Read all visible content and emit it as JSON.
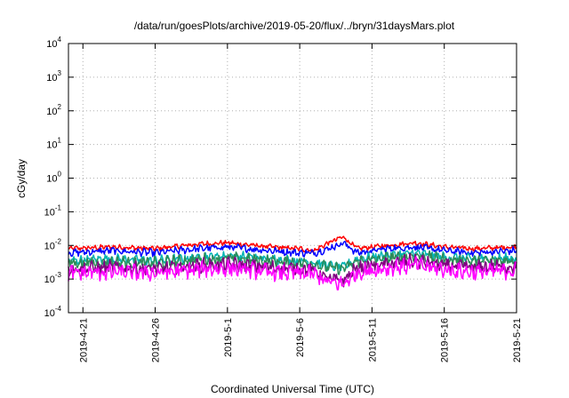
{
  "chart_data": {
    "type": "line",
    "title": "/data/run/goesPlots/archive/2019-05-20/flux/../bryn/31daysMars.plot",
    "xlabel": "Coordinated Universal Time (UTC)",
    "ylabel": "cGy/day",
    "y_scale": "log",
    "ylim": [
      0.0001,
      10000
    ],
    "xlim": [
      "2019-04-20",
      "2019-05-21"
    ],
    "grid": true,
    "y_ticks": [
      {
        "base": "10",
        "exp": "4"
      },
      {
        "base": "10",
        "exp": "3"
      },
      {
        "base": "10",
        "exp": "2"
      },
      {
        "base": "10",
        "exp": "1"
      },
      {
        "base": "10",
        "exp": "0"
      },
      {
        "base": "10",
        "exp": "-1"
      },
      {
        "base": "10",
        "exp": "-2"
      },
      {
        "base": "10",
        "exp": "-3"
      },
      {
        "base": "10",
        "exp": "-4"
      }
    ],
    "x_ticks": [
      "2019-4-21",
      "2019-4-26",
      "2019-5-1",
      "2019-5-6",
      "2019-5-11",
      "2019-5-16",
      "2019-5-21"
    ],
    "series": [
      {
        "color": "#ff0000",
        "x": [
          "2019-04-20",
          "2019-04-23",
          "2019-04-26",
          "2019-04-29",
          "2019-05-01",
          "2019-05-04",
          "2019-05-06",
          "2019-05-07",
          "2019-05-08",
          "2019-05-09",
          "2019-05-10",
          "2019-05-12",
          "2019-05-14",
          "2019-05-16",
          "2019-05-18",
          "2019-05-21"
        ],
        "y": [
          0.008,
          0.009,
          0.008,
          0.011,
          0.012,
          0.009,
          0.008,
          0.007,
          0.012,
          0.018,
          0.008,
          0.01,
          0.012,
          0.009,
          0.008,
          0.009
        ]
      },
      {
        "color": "#0000ff",
        "x": [
          "2019-04-20",
          "2019-04-23",
          "2019-04-26",
          "2019-04-29",
          "2019-05-01",
          "2019-05-04",
          "2019-05-06",
          "2019-05-07",
          "2019-05-08",
          "2019-05-09",
          "2019-05-10",
          "2019-05-12",
          "2019-05-14",
          "2019-05-16",
          "2019-05-18",
          "2019-05-21"
        ],
        "y": [
          0.006,
          0.007,
          0.006,
          0.008,
          0.009,
          0.007,
          0.006,
          0.006,
          0.008,
          0.012,
          0.006,
          0.008,
          0.009,
          0.007,
          0.006,
          0.007
        ]
      },
      {
        "color": "#00b3b3",
        "x": [
          "2019-04-20",
          "2019-04-23",
          "2019-04-26",
          "2019-04-29",
          "2019-05-01",
          "2019-05-04",
          "2019-05-06",
          "2019-05-07",
          "2019-05-08",
          "2019-05-09",
          "2019-05-10",
          "2019-05-12",
          "2019-05-14",
          "2019-05-16",
          "2019-05-18",
          "2019-05-21"
        ],
        "y": [
          0.0035,
          0.004,
          0.0035,
          0.0045,
          0.005,
          0.004,
          0.0035,
          0.0032,
          0.0025,
          0.0022,
          0.004,
          0.005,
          0.006,
          0.0045,
          0.004,
          0.0042
        ]
      },
      {
        "color": "#2e8b57",
        "x": [
          "2019-04-20",
          "2019-04-23",
          "2019-04-26",
          "2019-04-29",
          "2019-05-01",
          "2019-05-04",
          "2019-05-06",
          "2019-05-07",
          "2019-05-08",
          "2019-05-09",
          "2019-05-10",
          "2019-05-12",
          "2019-05-14",
          "2019-05-16",
          "2019-05-18",
          "2019-05-21"
        ],
        "y": [
          0.003,
          0.0032,
          0.003,
          0.0038,
          0.0042,
          0.0034,
          0.003,
          0.0028,
          0.0022,
          0.002,
          0.0034,
          0.0042,
          0.005,
          0.0038,
          0.0034,
          0.0036
        ]
      },
      {
        "color": "#800080",
        "x": [
          "2019-04-20",
          "2019-04-23",
          "2019-04-26",
          "2019-04-29",
          "2019-05-01",
          "2019-05-04",
          "2019-05-06",
          "2019-05-07",
          "2019-05-08",
          "2019-05-09",
          "2019-05-10",
          "2019-05-12",
          "2019-05-14",
          "2019-05-16",
          "2019-05-18",
          "2019-05-21"
        ],
        "y": [
          0.002,
          0.0022,
          0.002,
          0.0025,
          0.0028,
          0.0022,
          0.002,
          0.0018,
          0.001,
          0.0009,
          0.0022,
          0.0028,
          0.0035,
          0.0025,
          0.0022,
          0.0024
        ]
      },
      {
        "color": "#ff00ff",
        "x": [
          "2019-04-20",
          "2019-04-23",
          "2019-04-26",
          "2019-04-29",
          "2019-05-01",
          "2019-05-04",
          "2019-05-06",
          "2019-05-07",
          "2019-05-08",
          "2019-05-09",
          "2019-05-10",
          "2019-05-12",
          "2019-05-14",
          "2019-05-16",
          "2019-05-18",
          "2019-05-21"
        ],
        "y": [
          0.0015,
          0.0016,
          0.0015,
          0.0019,
          0.0021,
          0.0016,
          0.0015,
          0.0014,
          0.0008,
          0.0007,
          0.0016,
          0.0021,
          0.0026,
          0.0019,
          0.0016,
          0.0018
        ]
      }
    ]
  }
}
